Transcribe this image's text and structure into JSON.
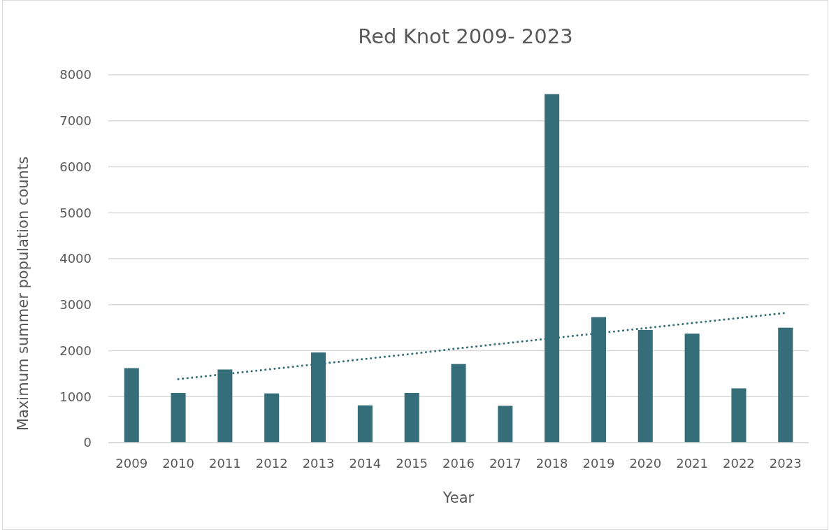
{
  "chart_data": {
    "type": "bar",
    "title": "Red Knot 2009- 2023",
    "xlabel": "Year",
    "ylabel": "Maximum summer population counts",
    "categories": [
      "2009",
      "2010",
      "2011",
      "2012",
      "2013",
      "2014",
      "2015",
      "2016",
      "2017",
      "2018",
      "2019",
      "2020",
      "2021",
      "2022",
      "2023"
    ],
    "series": [
      {
        "color": "#356d78",
        "values": [
          1620,
          1080,
          1590,
          1070,
          1960,
          810,
          1080,
          1710,
          800,
          7580,
          2730,
          2450,
          2370,
          1180,
          2500
        ]
      },
      {
        "type": "line",
        "color": "#356d78",
        "line_style": "dotted",
        "values": [
          null,
          1380,
          1490,
          1600,
          1710,
          1820,
          1930,
          2050,
          2160,
          2270,
          2380,
          2490,
          2600,
          2710,
          2820
        ]
      }
    ],
    "ylim": [
      0,
      8000
    ],
    "yticks": [
      0,
      1000,
      2000,
      3000,
      4000,
      5000,
      6000,
      7000,
      8000
    ],
    "grid": "y"
  }
}
